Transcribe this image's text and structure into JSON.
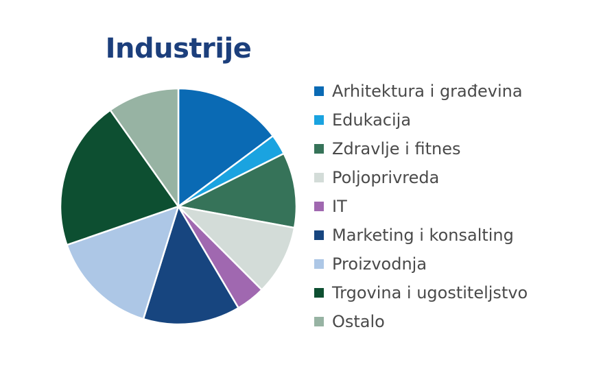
{
  "chart_data": {
    "type": "pie",
    "title": "Industrije",
    "legend_position": "right",
    "slices": [
      {
        "label": "Arhitektura i građevina",
        "value": 14.8,
        "color": "#0a6ab4"
      },
      {
        "label": "Edukacija",
        "value": 2.8,
        "color": "#1aa3e0"
      },
      {
        "label": "Zdravlje i fitnes",
        "value": 10.3,
        "color": "#367359"
      },
      {
        "label": "Poljoprivreda",
        "value": 9.6,
        "color": "#d3dcd8"
      },
      {
        "label": "IT",
        "value": 4.0,
        "color": "#a068b0"
      },
      {
        "label": "Marketing i konsalting",
        "value": 13.3,
        "color": "#17457f"
      },
      {
        "label": "Proizvodnja",
        "value": 14.9,
        "color": "#adc7e6"
      },
      {
        "label": "Trgovina i ugostiteljstvo",
        "value": 20.5,
        "color": "#0d4f31"
      },
      {
        "label": "Ostalo",
        "value": 9.8,
        "color": "#97b3a3"
      }
    ]
  }
}
